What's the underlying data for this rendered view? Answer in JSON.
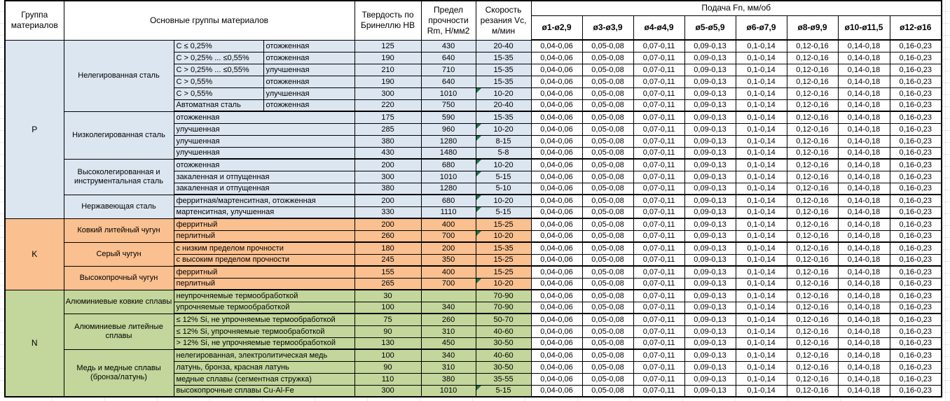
{
  "table": {
    "headers": {
      "group": "Группа материалов",
      "main_groups": "Основные группы материалов",
      "hardness": "Твердость по Бринеллю HB",
      "strength": "Предел прочности Rm, Н/мм2",
      "speed": "Скорость резания Vc, м/мин",
      "feed_title": "Подача Fn, мм/об",
      "feed_columns": [
        "ø1-ø2,9",
        "ø3-ø3,9",
        "ø4-ø4,9",
        "ø5-ø5,9",
        "ø6-ø7,9",
        "ø8-ø9,9",
        "ø10-ø11,5",
        "ø12-ø16"
      ]
    },
    "feed_values": [
      "0,04-0,06",
      "0,05-0,08",
      "0,07-0,11",
      "0,09-0,13",
      "0,1-0,14",
      "0,12-0,16",
      "0,14-0,18",
      "0,16-0,23"
    ],
    "groups": [
      {
        "code": "P",
        "color": "#dce6f1",
        "subgroups": [
          {
            "name": "Нелегированная сталь",
            "rows": [
              {
                "cond": "C ≤ 0,25%",
                "state": "отожженная",
                "hb": "125",
                "rm": "430",
                "vc": "20-40",
                "marker": false
              },
              {
                "cond": "C > 0,25% ... ≤0,55%",
                "state": "отожженная",
                "hb": "190",
                "rm": "640",
                "vc": "15-35",
                "marker": false
              },
              {
                "cond": "C > 0,25% ... ≤0,55%",
                "state": "улучшенная",
                "hb": "210",
                "rm": "710",
                "vc": "15-35",
                "marker": false
              },
              {
                "cond": "C > 0,55%",
                "state": "отожженная",
                "hb": "190",
                "rm": "640",
                "vc": "15-35",
                "marker": false
              },
              {
                "cond": "C > 0,55%",
                "state": "улучшенная",
                "hb": "300",
                "rm": "1010",
                "vc": "10-20",
                "marker": true
              },
              {
                "cond": "Автоматная сталь",
                "state": "отожженная",
                "hb": "220",
                "rm": "750",
                "vc": "20-40",
                "marker": false
              }
            ]
          },
          {
            "name": "Низколегированная сталь",
            "rows": [
              {
                "desc": "отожженная",
                "hb": "175",
                "rm": "590",
                "vc": "15-35",
                "marker": false
              },
              {
                "desc": "улучшенная",
                "hb": "285",
                "rm": "960",
                "vc": "10-20",
                "marker": true
              },
              {
                "desc": "улучшенная",
                "hb": "380",
                "rm": "1280",
                "vc": "8-15",
                "marker": true
              },
              {
                "desc": "улучшенная",
                "hb": "430",
                "rm": "1480",
                "vc": "5-8",
                "marker": false
              }
            ]
          },
          {
            "name": "Высоколегированная и инструментальная сталь",
            "rows": [
              {
                "desc": "отожженная",
                "hb": "200",
                "rm": "680",
                "vc": "10-20",
                "marker": true
              },
              {
                "desc": "закаленная и отпущенная",
                "hb": "300",
                "rm": "1010",
                "vc": "5-15",
                "marker": true
              },
              {
                "desc": "закаленная и отпущенная",
                "hb": "380",
                "rm": "1280",
                "vc": "5-10",
                "marker": false
              }
            ]
          },
          {
            "name": "Нержавеющая сталь",
            "rows": [
              {
                "desc": "ферритная/мартенситная, отожженная",
                "hb": "200",
                "rm": "680",
                "vc": "10-20",
                "marker": true
              },
              {
                "desc": "мартенситная, улучшенная",
                "hb": "330",
                "rm": "1110",
                "vc": "5-15",
                "marker": true
              }
            ]
          }
        ]
      },
      {
        "code": "K",
        "color": "#fac090",
        "subgroups": [
          {
            "name": "Ковкий литейный чугун",
            "rows": [
              {
                "desc": "ферритный",
                "hb": "200",
                "rm": "400",
                "vc": "15-25",
                "marker": false
              },
              {
                "desc": "перлитный",
                "hb": "260",
                "rm": "700",
                "vc": "10-20",
                "marker": true
              }
            ]
          },
          {
            "name": "Серый чугун",
            "rows": [
              {
                "desc": "с низким пределом прочности",
                "hb": "180",
                "rm": "200",
                "vc": "15-35",
                "marker": false
              },
              {
                "desc": "с высоким пределом прочности",
                "hb": "245",
                "rm": "350",
                "vc": "15-25",
                "marker": false
              }
            ]
          },
          {
            "name": "Высокопрочный чугун",
            "rows": [
              {
                "desc": "ферритный",
                "hb": "155",
                "rm": "400",
                "vc": "15-25",
                "marker": false
              },
              {
                "desc": "перлитный",
                "hb": "265",
                "rm": "700",
                "vc": "10-20",
                "marker": true
              }
            ]
          }
        ]
      },
      {
        "code": "N",
        "color": "#c3d69b",
        "subgroups": [
          {
            "name": "Алюминиевые ковкие сплавы",
            "rows": [
              {
                "desc": "неупрочняемые термообработкой",
                "hb": "30",
                "rm": "",
                "vc": "70-90",
                "marker": false
              },
              {
                "desc": "упрочняемые термообработкой",
                "hb": "100",
                "rm": "340",
                "vc": "70-90",
                "marker": false
              }
            ]
          },
          {
            "name": "Алюминиевые литейные сплавы",
            "rows": [
              {
                "desc": "≤ 12% Si, не упрочняемые термообработкой",
                "hb": "75",
                "rm": "260",
                "vc": "50-70",
                "marker": false
              },
              {
                "desc": "≤ 12% Si, упрочняемые термообработкой",
                "hb": "90",
                "rm": "310",
                "vc": "40-60",
                "marker": false
              },
              {
                "desc": "> 12% Si, не упрочняемые термообработкой",
                "hb": "130",
                "rm": "450",
                "vc": "30-50",
                "marker": false
              }
            ]
          },
          {
            "name": "Медь и медные сплавы (бронза/латунь)",
            "rows": [
              {
                "desc": "нелегированная, электролитическая медь",
                "hb": "100",
                "rm": "340",
                "vc": "40-60",
                "marker": false
              },
              {
                "desc": "латунь, бронза, красная латунь",
                "hb": "90",
                "rm": "310",
                "vc": "30-50",
                "marker": false
              },
              {
                "desc": "медные сплавы (сегментная стружка)",
                "hb": "110",
                "rm": "380",
                "vc": "35-55",
                "marker": false
              },
              {
                "desc": "высокопрочные сплавы Cu-Al-Fe",
                "hb": "300",
                "rm": "1010",
                "vc": "5-15",
                "marker": true
              }
            ]
          }
        ]
      }
    ]
  },
  "colors": {
    "marker": "#1e7145",
    "border": "#000000",
    "group_p_fill": "#dce6f1",
    "group_k_fill": "#fac090",
    "group_n_fill": "#c3d69b"
  }
}
